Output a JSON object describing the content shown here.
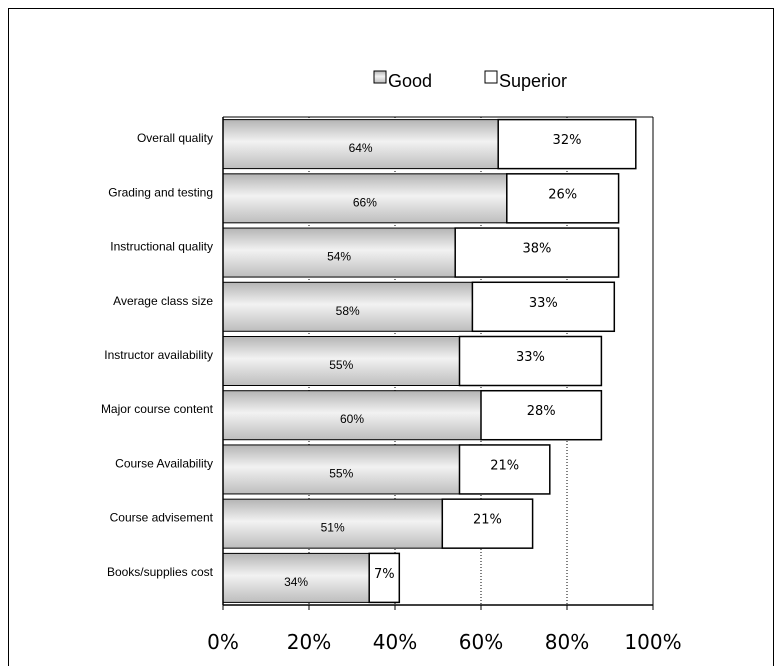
{
  "chart_data": {
    "type": "bar",
    "orientation": "horizontal",
    "stacked": true,
    "categories": [
      "Overall quality",
      "Grading and testing",
      "Instructional quality",
      "Average class size",
      "Instructor availability",
      "Major course content",
      "Course Availability",
      "Course advisement",
      "Books/supplies cost"
    ],
    "series": [
      {
        "name": "Good",
        "values": [
          64,
          66,
          54,
          58,
          55,
          60,
          55,
          51,
          34
        ],
        "labels": [
          "64%",
          "66%",
          "54%",
          "58%",
          "55%",
          "60%",
          "55%",
          "51%",
          "34%"
        ]
      },
      {
        "name": "Superior",
        "values": [
          32,
          26,
          38,
          33,
          33,
          28,
          21,
          21,
          7
        ],
        "labels": [
          "32%",
          "26%",
          "38%",
          "33%",
          "33%",
          "28%",
          "21%",
          "21%",
          "7%"
        ]
      }
    ],
    "x_ticks": [
      "0%",
      "20%",
      "40%",
      "60%",
      "80%",
      "100%"
    ],
    "xlim": [
      0,
      100
    ],
    "legend_position": "top-center",
    "grid": "dotted vertical",
    "colors": {
      "good": "#c8c8c8",
      "superior": "#ffffff"
    }
  }
}
